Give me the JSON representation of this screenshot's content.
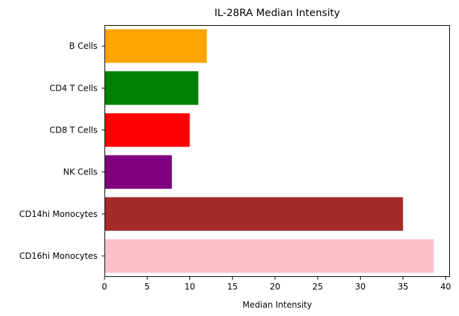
{
  "chart_data": {
    "type": "bar",
    "orientation": "horizontal",
    "title": "IL-28RA Median Intensity",
    "xlabel": "Median Intensity",
    "ylabel": "",
    "xlim": [
      0,
      40.5
    ],
    "x_ticks": [
      "0",
      "5",
      "10",
      "15",
      "20",
      "25",
      "30",
      "35",
      "40"
    ],
    "categories": [
      "B Cells",
      "CD4 T Cells",
      "CD8 T Cells",
      "NK Cells",
      "CD14hi Monocytes",
      "CD16hi Monocytes"
    ],
    "values": [
      12.0,
      11.0,
      10.0,
      7.9,
      35.0,
      38.6
    ],
    "colors": [
      "#ffa500",
      "#008000",
      "#ff0000",
      "#800080",
      "#a52a2a",
      "#ffc0cb"
    ],
    "grid": false,
    "legend": "none"
  }
}
